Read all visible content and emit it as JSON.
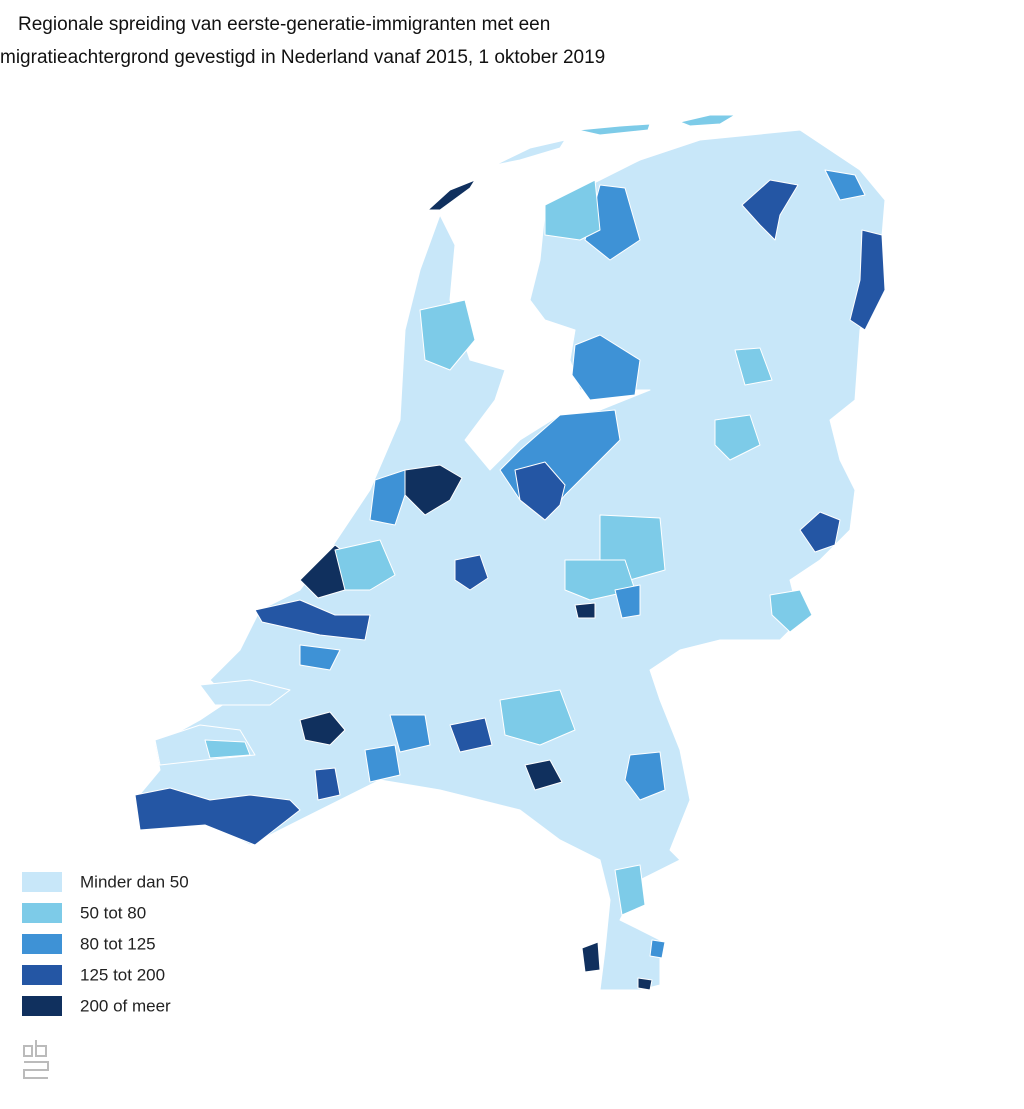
{
  "title": [
    "Regionale spreiding van eerste-generatie-immigranten met een",
    "migratieachtergrond gevestigd in Nederland vanaf 2015, 1 oktober 2019"
  ],
  "legend": [
    {
      "label": "Minder dan 50",
      "color": "#c8e7f9"
    },
    {
      "label": "50 tot 80",
      "color": "#7dcbe8"
    },
    {
      "label": "80 tot 125",
      "color": "#3e92d6"
    },
    {
      "label": "125 tot 200",
      "color": "#2456a4"
    },
    {
      "label": "200 of meer",
      "color": "#10305e"
    }
  ]
}
